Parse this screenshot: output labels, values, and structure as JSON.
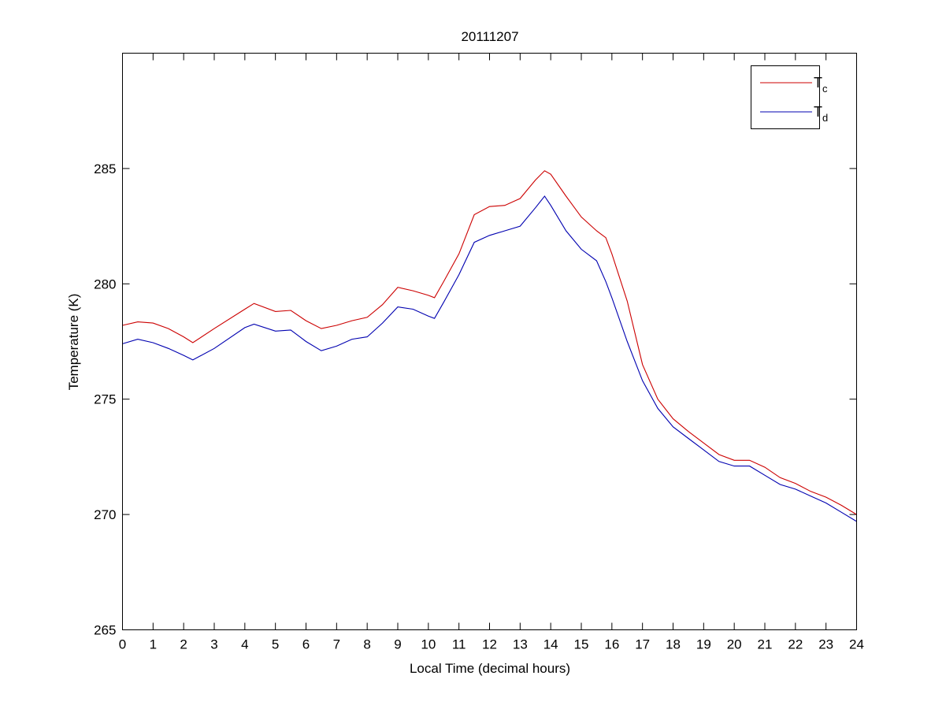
{
  "chart_data": {
    "type": "line",
    "title": "20111207",
    "xlabel": "Local Time (decimal hours)",
    "ylabel": "Temperature (K)",
    "xlim": [
      0,
      24
    ],
    "ylim": [
      265,
      290
    ],
    "xticks": [
      0,
      1,
      2,
      3,
      4,
      5,
      6,
      7,
      8,
      9,
      10,
      11,
      12,
      13,
      14,
      15,
      16,
      17,
      18,
      19,
      20,
      21,
      22,
      23,
      24
    ],
    "yticks": [
      265,
      270,
      275,
      280,
      285
    ],
    "grid": false,
    "legend_position": "top-right",
    "x": [
      0,
      0.5,
      1,
      1.5,
      2,
      2.3,
      3,
      4,
      4.3,
      5,
      5.5,
      6,
      6.5,
      7,
      7.5,
      8,
      8.5,
      9,
      9.5,
      10,
      10.2,
      10.5,
      11,
      11.5,
      12,
      12.5,
      13,
      13.5,
      13.8,
      14,
      14.5,
      15,
      15.5,
      15.8,
      16,
      16.5,
      17,
      17.5,
      18,
      18.5,
      19,
      19.5,
      20,
      20.5,
      21,
      21.5,
      22,
      22.5,
      23,
      23.5,
      24
    ],
    "series": [
      {
        "name": "T",
        "subscript": "c",
        "color": "#cc0000",
        "values": [
          278.2,
          278.35,
          278.3,
          278.06,
          277.7,
          277.45,
          278.06,
          278.9,
          279.15,
          278.8,
          278.85,
          278.4,
          278.06,
          278.2,
          278.4,
          278.55,
          279.1,
          279.85,
          279.7,
          279.5,
          279.4,
          280.1,
          281.3,
          283.0,
          283.35,
          283.4,
          283.7,
          284.5,
          284.9,
          284.75,
          283.8,
          282.9,
          282.3,
          282.0,
          281.3,
          279.25,
          276.5,
          275.0,
          274.15,
          273.6,
          273.1,
          272.6,
          272.35,
          272.35,
          272.05,
          271.6,
          271.35,
          271.0,
          270.75,
          270.4,
          270.0
        ]
      },
      {
        "name": "T",
        "subscript": "d",
        "color": "#0000b0",
        "values": [
          277.4,
          277.6,
          277.45,
          277.2,
          276.9,
          276.7,
          277.2,
          278.1,
          278.25,
          277.95,
          278.0,
          277.5,
          277.1,
          277.3,
          277.6,
          277.7,
          278.3,
          279.0,
          278.9,
          278.6,
          278.5,
          279.2,
          280.4,
          281.8,
          282.1,
          282.3,
          282.5,
          283.3,
          283.8,
          283.4,
          282.3,
          281.5,
          281.0,
          280.1,
          279.4,
          277.5,
          275.8,
          274.6,
          273.8,
          273.3,
          272.8,
          272.3,
          272.1,
          272.1,
          271.7,
          271.3,
          271.1,
          270.8,
          270.5,
          270.1,
          269.7
        ]
      }
    ]
  }
}
